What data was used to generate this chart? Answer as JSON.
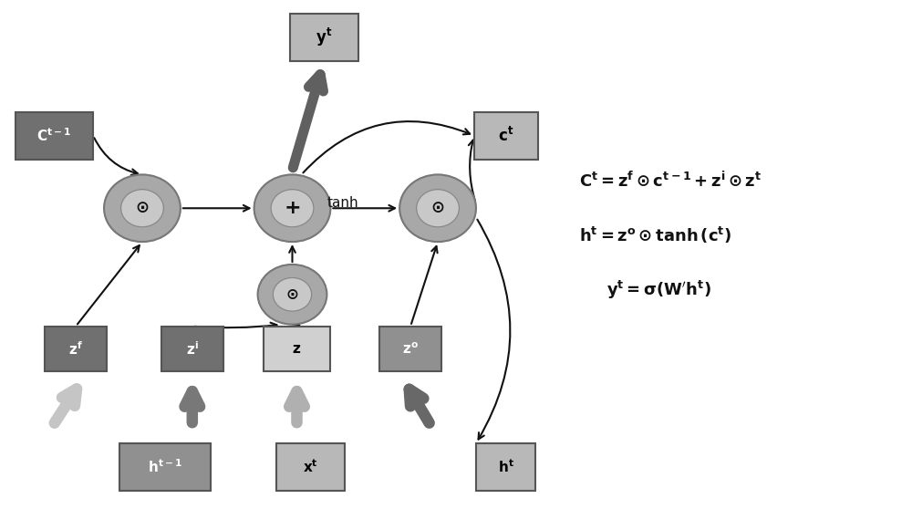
{
  "bg_color": "#ffffff",
  "figsize": [
    10.0,
    5.58
  ],
  "dpi": 100,
  "circle_fill": "#a8a8a8",
  "circle_edge": "#777777",
  "circle_inner_fill": "#c8c8c8",
  "circle_inner_edge": "#888888",
  "box_dark": "#707070",
  "box_mid": "#909090",
  "box_light": "#b8b8b8",
  "box_vlight": "#d0d0d0",
  "box_edge": "#555555",
  "arrow_thin_color": "#111111",
  "arrow_thick_color": "#555555",
  "text_dark": "#000000",
  "text_white": "#ffffff",
  "eq1": "$\\mathbf{C^t = z^f\\odot c^{t-1}+z^i\\odot z^t}$",
  "eq2": "$\\mathbf{h^t= z^o\\odot tanh\\,(c^t)}$",
  "eq3": "$\\mathbf{y^t = \\sigma(W'h^t)}$"
}
